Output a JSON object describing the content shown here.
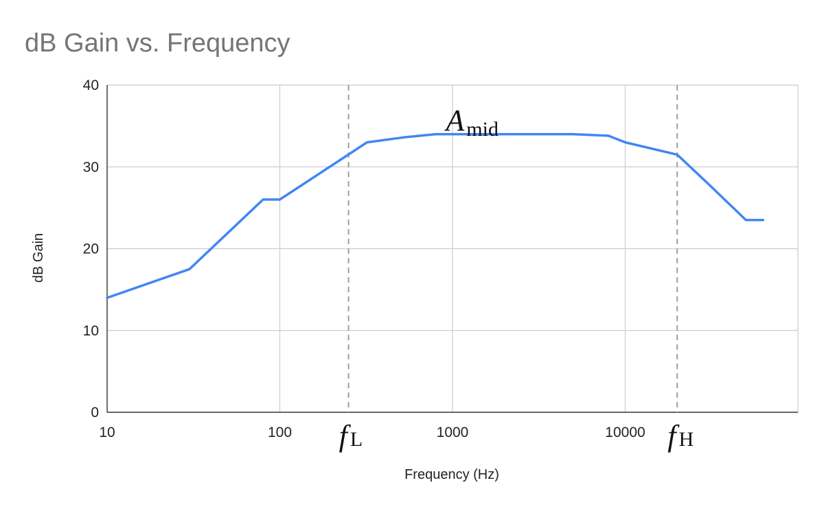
{
  "chart_data": {
    "type": "line",
    "title": "dB Gain vs. Frequency",
    "xlabel": "Frequency (Hz)",
    "ylabel": "dB Gain",
    "x_scale": "log",
    "xlim": [
      10,
      63000
    ],
    "ylim": [
      0,
      40
    ],
    "x_ticks": [
      "10",
      "100",
      "1000",
      "10000"
    ],
    "y_ticks": [
      "0",
      "10",
      "20",
      "30",
      "40"
    ],
    "grid": true,
    "legend": "none",
    "line_color": "#4285F4",
    "series": [
      {
        "x": [
          10,
          30,
          80,
          100,
          320,
          520,
          800,
          1000,
          2000,
          5000,
          8000,
          10000,
          20000,
          30000,
          50000,
          63000
        ],
        "y": [
          14,
          17.5,
          26,
          26,
          33,
          33.6,
          34,
          34,
          34,
          34,
          33.8,
          33,
          31.5,
          28,
          23.5,
          23.5
        ]
      }
    ],
    "reference_lines": [
      {
        "x": 250,
        "label_main": "f",
        "label_sub": "L"
      },
      {
        "x": 20000,
        "label_main": "f",
        "label_sub": "H"
      }
    ],
    "annotations": [
      {
        "x": 1100,
        "y": 35.8,
        "label_main": "A",
        "label_sub": "mid"
      }
    ]
  }
}
